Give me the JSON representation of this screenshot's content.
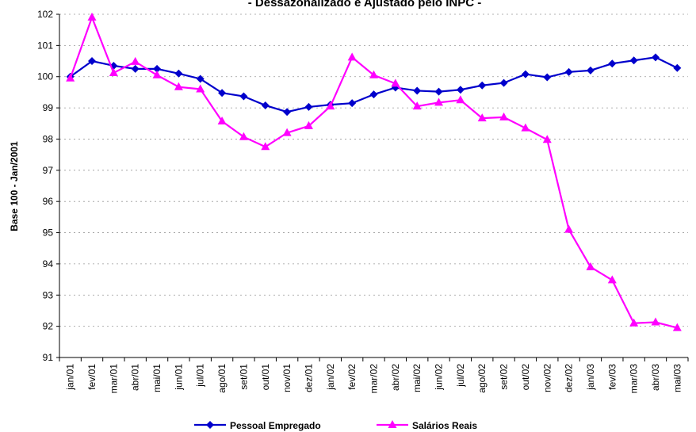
{
  "chart_data": {
    "type": "line",
    "title": "- Dessazonalizado e Ajustado pelo INPC -",
    "y_label": "Base 100 - Jan/2001",
    "categories": [
      "jan/01",
      "fev/01",
      "mar/01",
      "abr/01",
      "mai/01",
      "jun/01",
      "jul/01",
      "ago/01",
      "set/01",
      "out/01",
      "nov/01",
      "dez/01",
      "jan/02",
      "fev/02",
      "mar/02",
      "abr/02",
      "mai/02",
      "jun/02",
      "jul/02",
      "ago/02",
      "set/02",
      "out/02",
      "nov/02",
      "dez/02",
      "jan/03",
      "fev/03",
      "mar/03",
      "abr/03",
      "mai/03"
    ],
    "series": [
      {
        "name": "Pessoal Empregado",
        "color": "#0000cc",
        "marker": "diamond",
        "values": [
          100.0,
          100.5,
          100.35,
          100.25,
          100.25,
          100.1,
          99.93,
          99.48,
          99.37,
          99.08,
          98.87,
          99.03,
          99.1,
          99.15,
          99.43,
          99.65,
          99.55,
          99.52,
          99.58,
          99.72,
          99.8,
          100.08,
          99.98,
          100.15,
          100.2,
          100.42,
          100.52,
          100.62,
          100.28
        ]
      },
      {
        "name": "Salários Reais",
        "color": "#ff00ff",
        "marker": "triangle",
        "values": [
          99.95,
          101.9,
          100.12,
          100.48,
          100.05,
          99.67,
          99.6,
          98.57,
          98.07,
          97.75,
          98.2,
          98.42,
          99.05,
          100.62,
          100.05,
          99.78,
          99.05,
          99.17,
          99.25,
          98.67,
          98.7,
          98.35,
          97.98,
          95.1,
          93.9,
          93.48,
          92.1,
          92.13,
          91.95
        ]
      }
    ],
    "ylim": [
      91,
      102
    ],
    "yticks": [
      91,
      92,
      93,
      94,
      95,
      96,
      97,
      98,
      99,
      100,
      101,
      102
    ],
    "grid": true,
    "legend": "bottom"
  }
}
